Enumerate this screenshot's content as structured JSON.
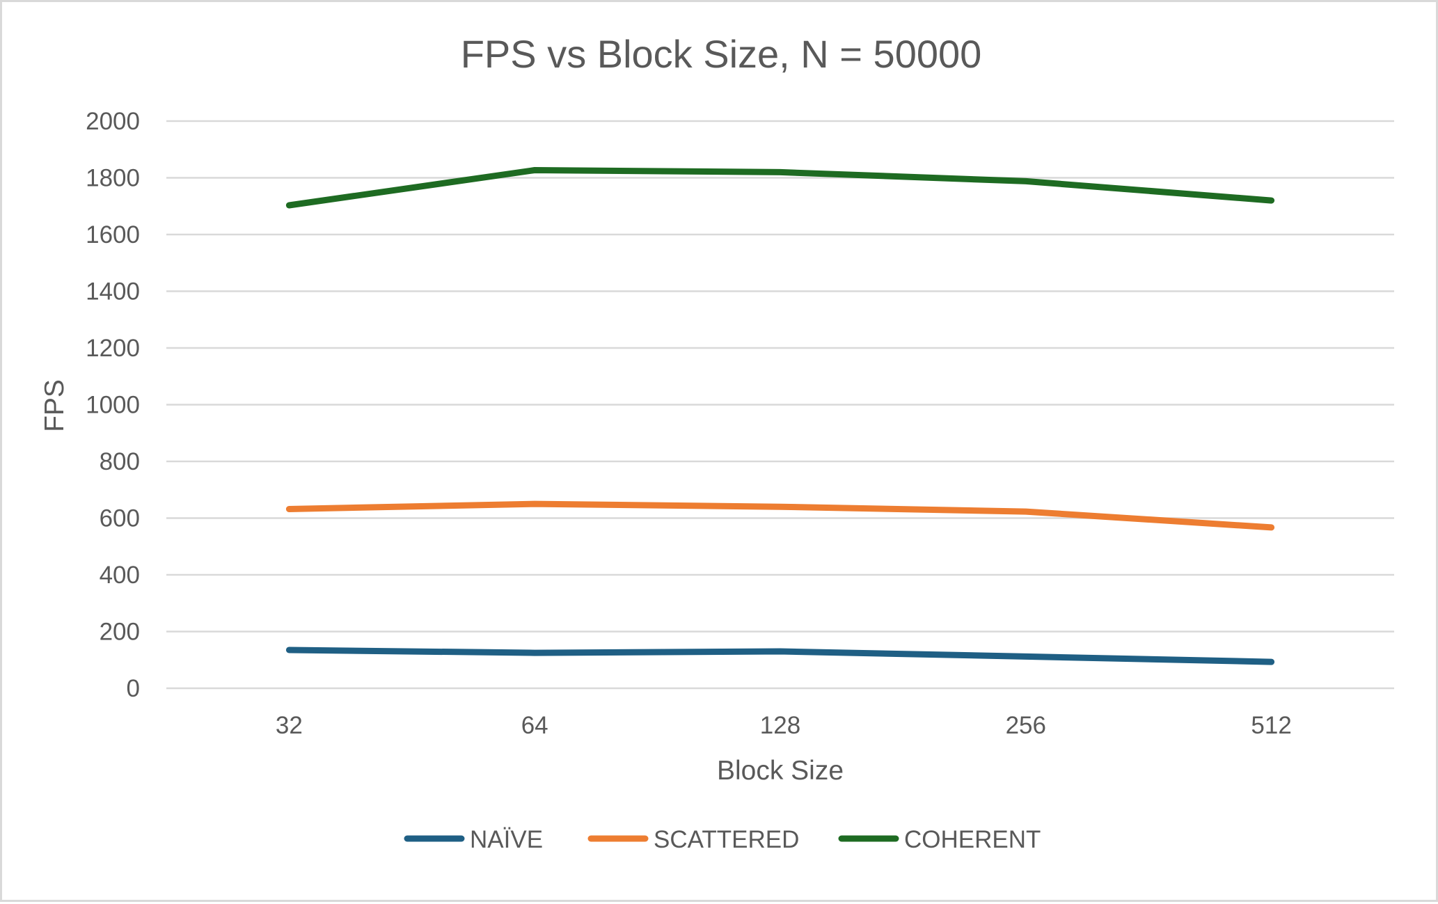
{
  "chart_data": {
    "type": "line",
    "title": "FPS vs Block Size, N = 50000",
    "xlabel": "Block Size",
    "ylabel": "FPS",
    "categories": [
      "32",
      "64",
      "128",
      "256",
      "512"
    ],
    "ylim": [
      0,
      2000
    ],
    "yticks": [
      0,
      200,
      400,
      600,
      800,
      1000,
      1200,
      1400,
      1600,
      1800,
      2000
    ],
    "grid": true,
    "legend_position": "bottom",
    "series": [
      {
        "name": "NAÏVE",
        "color": "#1f5f84",
        "values": [
          135,
          125,
          130,
          112,
          93
        ]
      },
      {
        "name": "SCATTERED",
        "color": "#ed7d31",
        "values": [
          632,
          650,
          640,
          623,
          567
        ]
      },
      {
        "name": "COHERENT",
        "color": "#1e6b22",
        "values": [
          1703,
          1827,
          1820,
          1788,
          1720
        ]
      }
    ]
  }
}
